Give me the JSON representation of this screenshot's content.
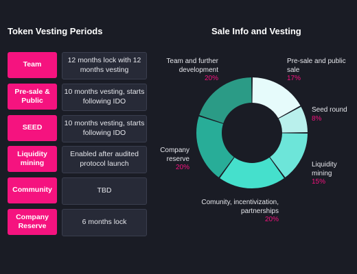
{
  "vesting": {
    "title": "Token Vesting Periods",
    "rows": [
      {
        "label": "Team",
        "desc": "12 months lock with 12 months vesting"
      },
      {
        "label": "Pre-sale & Public",
        "desc": "10 months vesting, starts following IDO"
      },
      {
        "label": "SEED",
        "desc": "10 months vesting, starts following IDO"
      },
      {
        "label": "Liquidity mining",
        "desc": "Enabled after audited protocol launch"
      },
      {
        "label": "Community",
        "desc": "TBD"
      },
      {
        "label": "Company Reserve",
        "desc": "6 months lock"
      }
    ]
  },
  "chart_data": {
    "type": "pie",
    "title": "Sale Info and Vesting",
    "donut": true,
    "slices": [
      {
        "name": "Pre-sale and public sale",
        "value": 17,
        "value_label": "17%",
        "color": "#e6fbfb"
      },
      {
        "name": "Seed round",
        "value": 8,
        "value_label": "8%",
        "color": "#b9f0ec"
      },
      {
        "name": "Liquidity mining",
        "value": 15,
        "value_label": "15%",
        "color": "#6de5d9"
      },
      {
        "name": "Comunity, incentivization, partnerships",
        "value": 20,
        "value_label": "20%",
        "color": "#45e0cc"
      },
      {
        "name": "Company reserve",
        "value": 20,
        "value_label": "20%",
        "color": "#28ad98"
      },
      {
        "name": "Team and further development",
        "value": 20,
        "value_label": "20%",
        "color": "#2b9b86"
      }
    ],
    "colors": {
      "accent": "#f5137f",
      "background": "#1a1c25"
    }
  }
}
